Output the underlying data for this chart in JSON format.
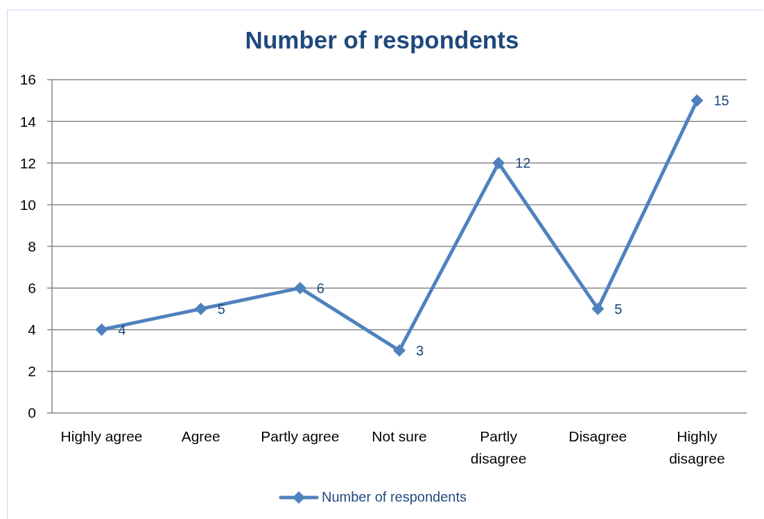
{
  "chart_data": {
    "type": "line",
    "title": "Number of respondents",
    "categories": [
      "Highly agree",
      "Agree",
      "Partly agree",
      "Not sure",
      "Partly disagree",
      "Disagree",
      "Highly disagree"
    ],
    "series": [
      {
        "name": "Number of respondents",
        "color": "#4f81bd",
        "values": [
          4,
          5,
          6,
          3,
          12,
          5,
          15
        ]
      }
    ],
    "ylim": [
      0,
      16
    ],
    "yticks": [
      0,
      2,
      4,
      6,
      8,
      10,
      12,
      14,
      16
    ],
    "grid": "y",
    "legend": "bottom",
    "marker": "diamond",
    "line_style": "solid",
    "data_labels": true
  }
}
